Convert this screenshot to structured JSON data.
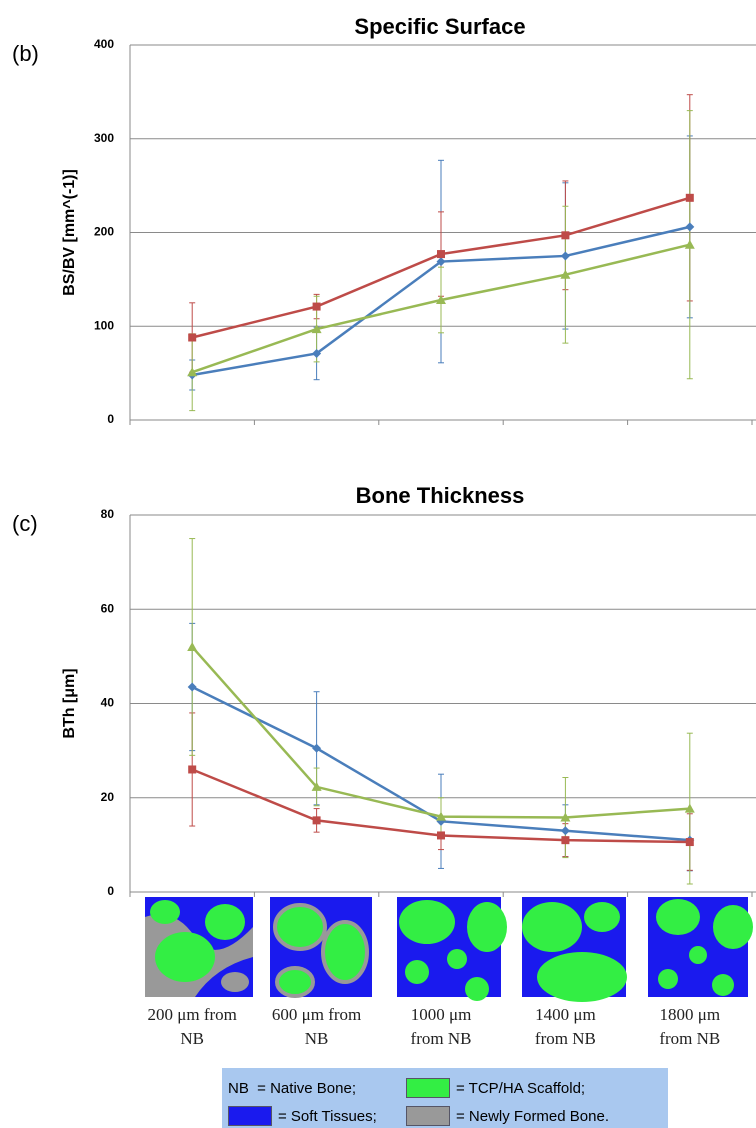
{
  "chart_data": [
    {
      "type": "line",
      "title": "Specific Surface",
      "annotation": "(b)",
      "ylabel": "BS/BV [mm^(-1)]",
      "ylim": [
        0,
        400
      ],
      "yticks": [
        0,
        100,
        200,
        300,
        400
      ],
      "grid": true,
      "series": [
        {
          "color": "#4a7ebb",
          "marker": "diamond",
          "values": [
            48,
            71,
            169,
            175,
            206
          ],
          "error": [
            16,
            28,
            108,
            78,
            97
          ]
        },
        {
          "color": "#be4b48",
          "marker": "square",
          "values": [
            88,
            121,
            177,
            197,
            237
          ],
          "error": [
            37,
            13,
            45,
            58,
            110
          ]
        },
        {
          "color": "#98b954",
          "marker": "triangle",
          "values": [
            51,
            97,
            128,
            155,
            187
          ],
          "error": [
            41,
            35,
            35,
            73,
            143
          ]
        }
      ]
    },
    {
      "type": "line",
      "title": "Bone Thickness",
      "annotation": "(c)",
      "ylabel": "BTh [μm]",
      "categories": [
        "200 μm from NB",
        "600 μm from NB",
        "1000 μm from NB",
        "1400 μm from NB",
        "1800 μm from NB"
      ],
      "ylim": [
        0,
        80
      ],
      "yticks": [
        0,
        20,
        40,
        60,
        80
      ],
      "grid": true,
      "series": [
        {
          "color": "#4a7ebb",
          "marker": "diamond",
          "values": [
            43.5,
            30.5,
            15,
            13,
            11
          ],
          "error": [
            13.5,
            12,
            10,
            5.5,
            6.5
          ]
        },
        {
          "color": "#be4b48",
          "marker": "square",
          "values": [
            26,
            15.2,
            12,
            11,
            10.6
          ],
          "error": [
            12,
            2.5,
            3,
            3.5,
            6
          ]
        },
        {
          "color": "#98b954",
          "marker": "triangle",
          "values": [
            52,
            22.3,
            16,
            15.8,
            17.7
          ],
          "error": [
            23,
            4,
            4,
            8.5,
            16
          ]
        }
      ]
    }
  ],
  "legend_box": [
    {
      "label": "NB  = Native Bone;"
    },
    {
      "label": "= TCP/HA Scaffold;",
      "color": "#33ee44"
    },
    {
      "label": "= Soft Tissues;",
      "color": "#1a1aee"
    },
    {
      "label": "= Newly Formed Bone.",
      "color": "#999999"
    }
  ]
}
